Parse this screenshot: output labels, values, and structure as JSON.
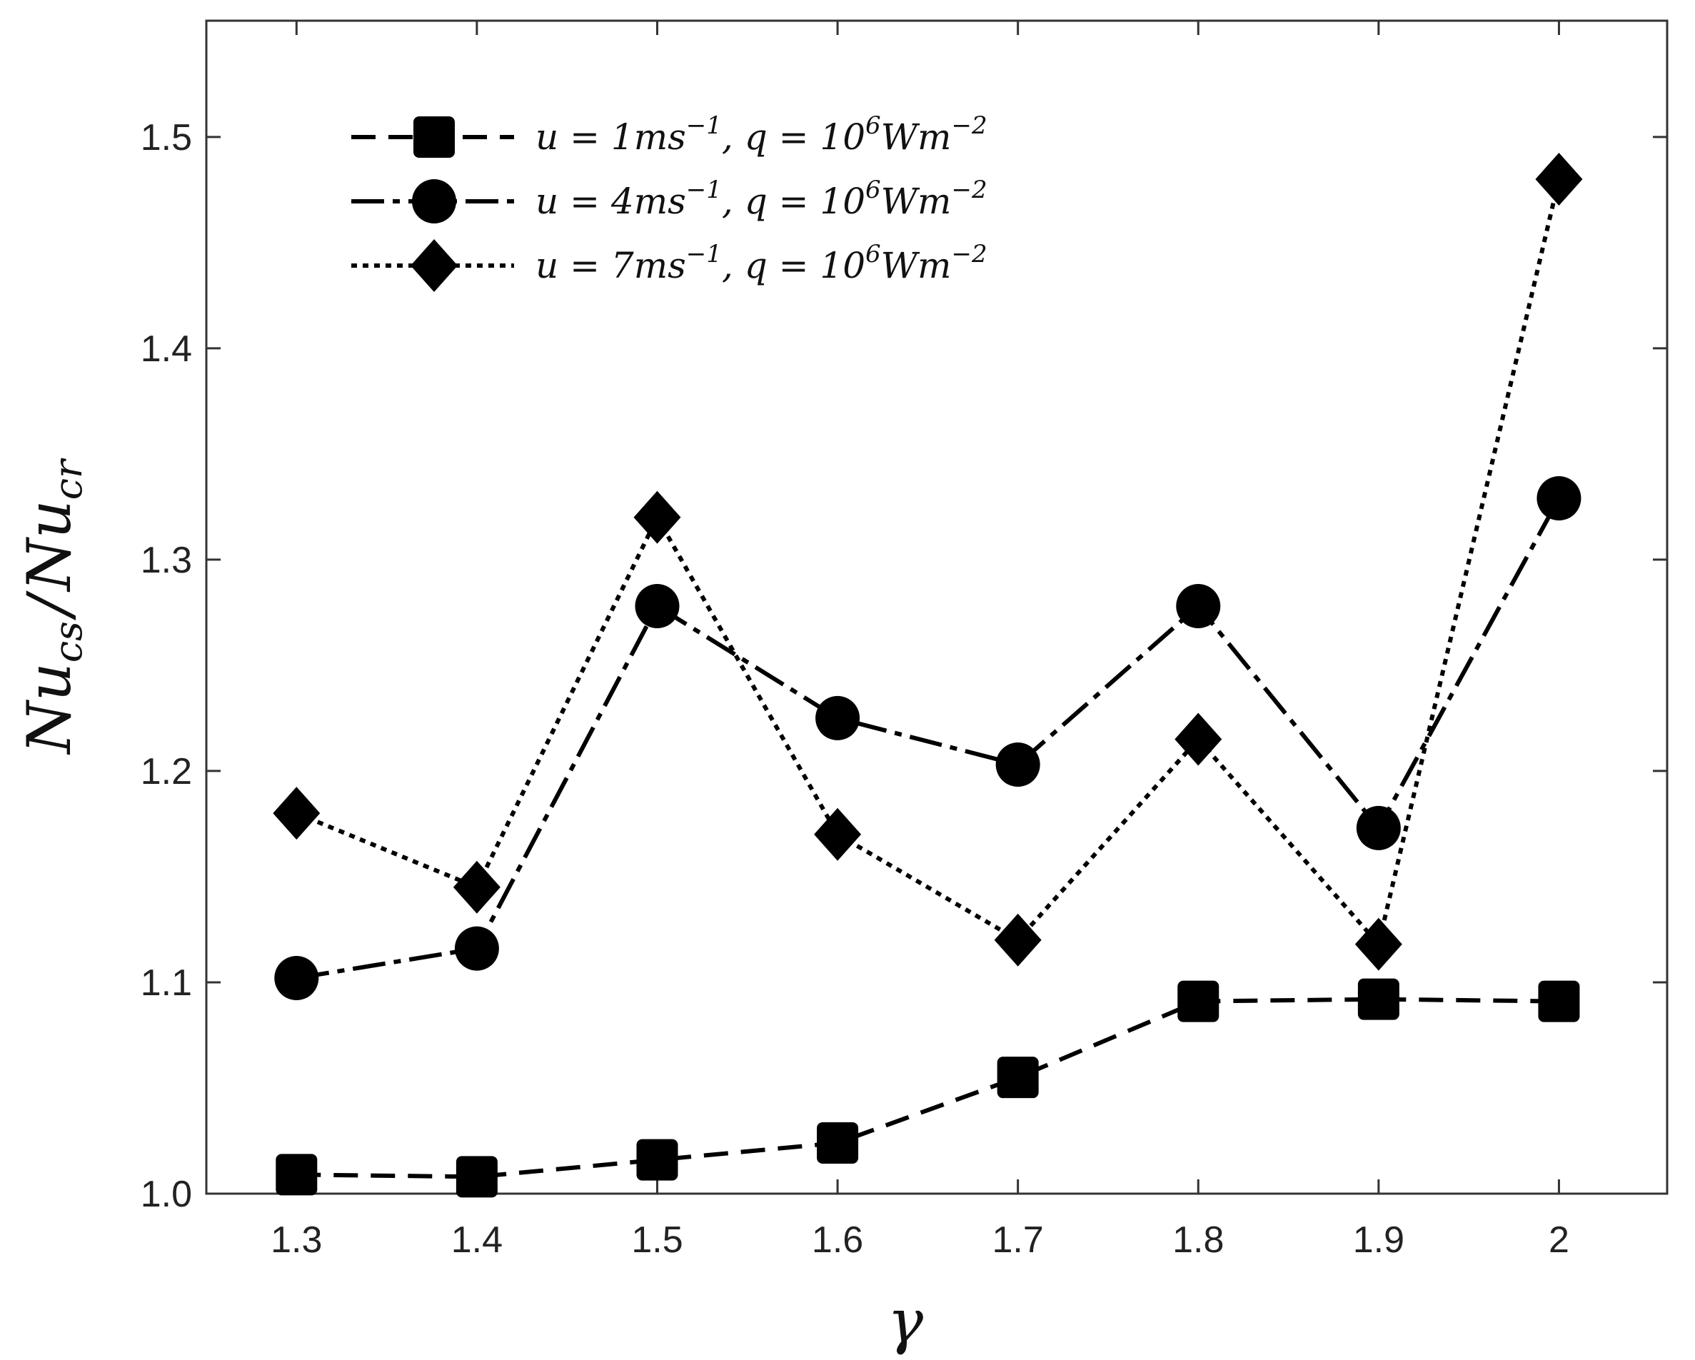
{
  "chart_data": {
    "type": "line",
    "title": "",
    "xlabel": "γ",
    "ylabel": "Nu_cs / Nu_cr",
    "xlabel_parts": {
      "base": "γ"
    },
    "ylabel_parts": {
      "num": "Nu",
      "num_sub": "cs",
      "sep": "/",
      "den": "Nu",
      "den_sub": "cr"
    },
    "x": [
      1.3,
      1.4,
      1.5,
      1.6,
      1.7,
      1.8,
      1.9,
      2.0
    ],
    "xlim": [
      1.25,
      2.06
    ],
    "ylim": [
      1.0,
      1.555
    ],
    "x_ticks": [
      1.3,
      1.4,
      1.5,
      1.6,
      1.7,
      1.8,
      1.9,
      2.0
    ],
    "x_tick_labels": [
      "1.3",
      "1.4",
      "1.5",
      "1.6",
      "1.7",
      "1.8",
      "1.9",
      "2"
    ],
    "y_ticks": [
      1.0,
      1.1,
      1.2,
      1.3,
      1.4,
      1.5
    ],
    "y_tick_labels": [
      "1.0",
      "1.1",
      "1.2",
      "1.3",
      "1.4",
      "1.5"
    ],
    "grid": false,
    "legend_position": "top-left",
    "series": [
      {
        "name": "u = 1ms⁻¹, q = 10⁶Wm⁻²",
        "legend": {
          "a": "u = 1ms",
          "a_sup": "−1",
          "b": ", q = 10",
          "b_sup": "6",
          "c": "Wm",
          "c_sup": "−2"
        },
        "marker": "square",
        "line_style": "dashed",
        "values": [
          1.009,
          1.008,
          1.016,
          1.024,
          1.055,
          1.091,
          1.092,
          1.091
        ]
      },
      {
        "name": "u = 4ms⁻¹, q = 10⁶Wm⁻²",
        "legend": {
          "a": "u = 4ms",
          "a_sup": "−1",
          "b": ", q = 10",
          "b_sup": "6",
          "c": "Wm",
          "c_sup": "−2"
        },
        "marker": "circle",
        "line_style": "dash-dot",
        "values": [
          1.102,
          1.116,
          1.278,
          1.225,
          1.203,
          1.278,
          1.173,
          1.329
        ]
      },
      {
        "name": "u = 7ms⁻¹, q = 10⁶Wm⁻²",
        "legend": {
          "a": "u = 7ms",
          "a_sup": "−1",
          "b": ", q = 10",
          "b_sup": "6",
          "c": "Wm",
          "c_sup": "−2"
        },
        "marker": "diamond",
        "line_style": "dotted",
        "values": [
          1.18,
          1.145,
          1.32,
          1.17,
          1.12,
          1.215,
          1.118,
          1.48
        ]
      }
    ]
  }
}
